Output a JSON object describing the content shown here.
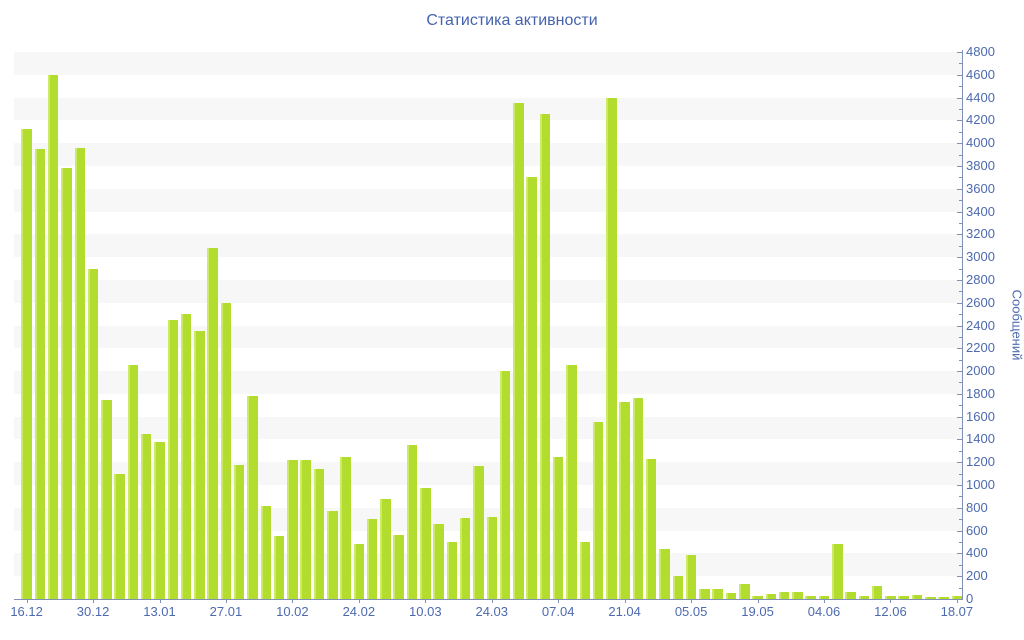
{
  "title": "Статистика активности",
  "chart_data": {
    "type": "bar",
    "title": "Статистика активности",
    "xlabel": "",
    "ylabel": "Сообщений",
    "ylim": [
      0,
      4800
    ],
    "y_tick_minor_step": 100,
    "y_tick_labels": [
      0,
      200,
      400,
      600,
      800,
      1000,
      1200,
      1400,
      1600,
      1800,
      2000,
      2200,
      2400,
      2600,
      2800,
      3000,
      3200,
      3400,
      3600,
      3800,
      4000,
      4200,
      4400,
      4600,
      4800
    ],
    "x_tick_labels": [
      "16.12",
      "30.12",
      "13.01",
      "27.01",
      "10.02",
      "24.02",
      "10.03",
      "24.03",
      "07.04",
      "21.04",
      "05.05",
      "19.05",
      "04.06",
      "12.06",
      "18.07"
    ],
    "bars_per_x_tick": 5,
    "legend": "none",
    "grid": "horizontal striped bands, 200 units per band",
    "values": [
      4120,
      3950,
      4600,
      3780,
      3960,
      2900,
      1750,
      1100,
      2050,
      1450,
      1380,
      2450,
      2500,
      2350,
      3080,
      2600,
      1180,
      1780,
      820,
      550,
      1220,
      1220,
      1140,
      770,
      1250,
      480,
      700,
      880,
      560,
      1350,
      970,
      660,
      500,
      710,
      1170,
      720,
      2000,
      4350,
      3700,
      4260,
      1250,
      2050,
      500,
      1550,
      4400,
      1730,
      1760,
      1230,
      440,
      200,
      390,
      90,
      90,
      50,
      130,
      30,
      40,
      65,
      60,
      25,
      25,
      480,
      60,
      25,
      110,
      25,
      25,
      35,
      15,
      20,
      25
    ],
    "colors": {
      "bar": "#b2dc2e",
      "bar_highlight": "#cdea67",
      "text": "#4d6ab0",
      "title": "#4563ad",
      "axis": "#8091b5",
      "stripe": "#f7f7f8",
      "background": "#ffffff"
    }
  }
}
